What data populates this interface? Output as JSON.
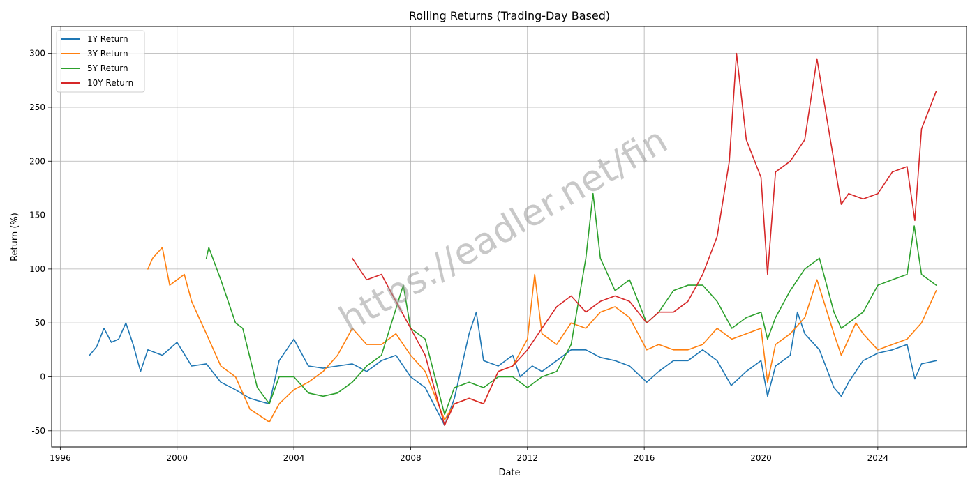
{
  "chart_data": {
    "type": "line",
    "title": "Rolling Returns (Trading-Day Based)",
    "xlabel": "Date",
    "ylabel": "Return (%)",
    "xlim": [
      "1995-09-15",
      "2027-01-15"
    ],
    "ylim": [
      -65,
      325
    ],
    "x_ticks": [
      {
        "value": "1996-01-01",
        "label": "1996"
      },
      {
        "value": "2000-01-01",
        "label": "2000"
      },
      {
        "value": "2004-01-01",
        "label": "2004"
      },
      {
        "value": "2008-01-01",
        "label": "2008"
      },
      {
        "value": "2012-01-01",
        "label": "2012"
      },
      {
        "value": "2016-01-01",
        "label": "2016"
      },
      {
        "value": "2020-01-01",
        "label": "2020"
      },
      {
        "value": "2024-01-01",
        "label": "2024"
      }
    ],
    "y_ticks": [
      -50,
      0,
      50,
      100,
      150,
      200,
      250,
      300
    ],
    "grid": true,
    "legend_position": "top-left",
    "watermark": "https://eadler.net/fin",
    "series": [
      {
        "name": "1Y Return",
        "color": "#1f77b4",
        "points": [
          [
            "1997-01-01",
            20
          ],
          [
            "1997-04-01",
            28
          ],
          [
            "1997-07-01",
            45
          ],
          [
            "1997-10-01",
            32
          ],
          [
            "1998-01-01",
            35
          ],
          [
            "1998-04-01",
            50
          ],
          [
            "1998-07-01",
            30
          ],
          [
            "1998-10-01",
            5
          ],
          [
            "1999-01-01",
            25
          ],
          [
            "1999-07-01",
            20
          ],
          [
            "2000-01-01",
            32
          ],
          [
            "2000-07-01",
            10
          ],
          [
            "2001-01-01",
            12
          ],
          [
            "2001-07-01",
            -5
          ],
          [
            "2002-01-01",
            -12
          ],
          [
            "2002-07-01",
            -20
          ],
          [
            "2002-10-01",
            -22
          ],
          [
            "2003-03-01",
            -25
          ],
          [
            "2003-07-01",
            15
          ],
          [
            "2004-01-01",
            35
          ],
          [
            "2004-07-01",
            10
          ],
          [
            "2005-01-01",
            8
          ],
          [
            "2005-07-01",
            10
          ],
          [
            "2006-01-01",
            12
          ],
          [
            "2006-07-01",
            5
          ],
          [
            "2007-01-01",
            15
          ],
          [
            "2007-07-01",
            20
          ],
          [
            "2008-01-01",
            0
          ],
          [
            "2008-07-01",
            -10
          ],
          [
            "2009-03-01",
            -45
          ],
          [
            "2009-07-01",
            -20
          ],
          [
            "2010-01-01",
            40
          ],
          [
            "2010-04-01",
            60
          ],
          [
            "2010-07-01",
            15
          ],
          [
            "2011-01-01",
            10
          ],
          [
            "2011-07-01",
            20
          ],
          [
            "2011-10-01",
            0
          ],
          [
            "2012-03-01",
            10
          ],
          [
            "2012-07-01",
            5
          ],
          [
            "2013-01-01",
            15
          ],
          [
            "2013-07-01",
            25
          ],
          [
            "2014-01-01",
            25
          ],
          [
            "2014-07-01",
            18
          ],
          [
            "2015-01-01",
            15
          ],
          [
            "2015-07-01",
            10
          ],
          [
            "2016-02-01",
            -5
          ],
          [
            "2016-07-01",
            5
          ],
          [
            "2017-01-01",
            15
          ],
          [
            "2017-07-01",
            15
          ],
          [
            "2018-01-01",
            25
          ],
          [
            "2018-07-01",
            15
          ],
          [
            "2018-12-24",
            -8
          ],
          [
            "2019-07-01",
            5
          ],
          [
            "2020-01-01",
            15
          ],
          [
            "2020-03-23",
            -18
          ],
          [
            "2020-07-01",
            10
          ],
          [
            "2021-01-01",
            20
          ],
          [
            "2021-04-01",
            60
          ],
          [
            "2021-07-01",
            40
          ],
          [
            "2022-01-01",
            25
          ],
          [
            "2022-07-01",
            -10
          ],
          [
            "2022-10-01",
            -18
          ],
          [
            "2023-01-01",
            -5
          ],
          [
            "2023-07-01",
            15
          ],
          [
            "2024-01-01",
            22
          ],
          [
            "2024-07-01",
            25
          ],
          [
            "2025-01-01",
            30
          ],
          [
            "2025-04-08",
            -2
          ],
          [
            "2025-07-01",
            12
          ],
          [
            "2026-01-01",
            15
          ]
        ]
      },
      {
        "name": "3Y Return",
        "color": "#ff7f0e",
        "points": [
          [
            "1999-01-01",
            100
          ],
          [
            "1999-03-01",
            110
          ],
          [
            "1999-07-01",
            120
          ],
          [
            "1999-10-01",
            85
          ],
          [
            "2000-01-01",
            90
          ],
          [
            "2000-04-01",
            95
          ],
          [
            "2000-07-01",
            70
          ],
          [
            "2000-10-01",
            55
          ],
          [
            "2001-01-01",
            40
          ],
          [
            "2001-07-01",
            10
          ],
          [
            "2002-01-01",
            0
          ],
          [
            "2002-07-01",
            -30
          ],
          [
            "2003-03-01",
            -42
          ],
          [
            "2003-07-01",
            -25
          ],
          [
            "2004-01-01",
            -12
          ],
          [
            "2004-07-01",
            -5
          ],
          [
            "2005-01-01",
            5
          ],
          [
            "2005-07-01",
            20
          ],
          [
            "2006-01-01",
            45
          ],
          [
            "2006-07-01",
            30
          ],
          [
            "2007-01-01",
            30
          ],
          [
            "2007-07-01",
            40
          ],
          [
            "2008-01-01",
            20
          ],
          [
            "2008-07-01",
            5
          ],
          [
            "2009-03-01",
            -40
          ],
          [
            "2009-07-01",
            -25
          ],
          [
            "2010-01-01",
            -20
          ],
          [
            "2010-07-01",
            -25
          ],
          [
            "2011-01-01",
            5
          ],
          [
            "2011-07-01",
            10
          ],
          [
            "2012-01-01",
            35
          ],
          [
            "2012-04-01",
            95
          ],
          [
            "2012-07-01",
            40
          ],
          [
            "2013-01-01",
            30
          ],
          [
            "2013-07-01",
            50
          ],
          [
            "2014-01-01",
            45
          ],
          [
            "2014-07-01",
            60
          ],
          [
            "2015-01-01",
            65
          ],
          [
            "2015-07-01",
            55
          ],
          [
            "2016-02-01",
            25
          ],
          [
            "2016-07-01",
            30
          ],
          [
            "2017-01-01",
            25
          ],
          [
            "2017-07-01",
            25
          ],
          [
            "2018-01-01",
            30
          ],
          [
            "2018-07-01",
            45
          ],
          [
            "2019-01-01",
            35
          ],
          [
            "2019-07-01",
            40
          ],
          [
            "2020-01-01",
            45
          ],
          [
            "2020-03-23",
            -5
          ],
          [
            "2020-07-01",
            30
          ],
          [
            "2021-01-01",
            40
          ],
          [
            "2021-07-01",
            55
          ],
          [
            "2021-12-01",
            90
          ],
          [
            "2022-07-01",
            40
          ],
          [
            "2022-10-01",
            20
          ],
          [
            "2023-04-01",
            50
          ],
          [
            "2023-07-01",
            40
          ],
          [
            "2024-01-01",
            25
          ],
          [
            "2024-07-01",
            30
          ],
          [
            "2025-01-01",
            35
          ],
          [
            "2025-07-01",
            50
          ],
          [
            "2026-01-01",
            80
          ]
        ]
      },
      {
        "name": "5Y Return",
        "color": "#2ca02c",
        "points": [
          [
            "2001-01-01",
            110
          ],
          [
            "2001-02-01",
            120
          ],
          [
            "2001-07-01",
            90
          ],
          [
            "2002-01-01",
            50
          ],
          [
            "2002-04-01",
            45
          ],
          [
            "2002-10-01",
            -10
          ],
          [
            "2003-03-01",
            -25
          ],
          [
            "2003-07-01",
            0
          ],
          [
            "2004-01-01",
            0
          ],
          [
            "2004-07-01",
            -15
          ],
          [
            "2005-01-01",
            -18
          ],
          [
            "2005-07-01",
            -15
          ],
          [
            "2006-01-01",
            -5
          ],
          [
            "2006-07-01",
            10
          ],
          [
            "2007-01-01",
            20
          ],
          [
            "2007-10-01",
            85
          ],
          [
            "2008-01-01",
            45
          ],
          [
            "2008-07-01",
            35
          ],
          [
            "2009-03-01",
            -35
          ],
          [
            "2009-07-01",
            -10
          ],
          [
            "2010-01-01",
            -5
          ],
          [
            "2010-07-01",
            -10
          ],
          [
            "2011-01-01",
            0
          ],
          [
            "2011-07-01",
            0
          ],
          [
            "2012-01-01",
            -10
          ],
          [
            "2012-07-01",
            0
          ],
          [
            "2013-01-01",
            5
          ],
          [
            "2013-07-01",
            30
          ],
          [
            "2014-01-01",
            110
          ],
          [
            "2014-04-01",
            170
          ],
          [
            "2014-07-01",
            110
          ],
          [
            "2015-01-01",
            80
          ],
          [
            "2015-07-01",
            90
          ],
          [
            "2016-02-01",
            50
          ],
          [
            "2016-07-01",
            60
          ],
          [
            "2017-01-01",
            80
          ],
          [
            "2017-07-01",
            85
          ],
          [
            "2018-01-01",
            85
          ],
          [
            "2018-07-01",
            70
          ],
          [
            "2019-01-01",
            45
          ],
          [
            "2019-07-01",
            55
          ],
          [
            "2020-01-01",
            60
          ],
          [
            "2020-03-23",
            35
          ],
          [
            "2020-07-01",
            55
          ],
          [
            "2021-01-01",
            80
          ],
          [
            "2021-07-01",
            100
          ],
          [
            "2022-01-01",
            110
          ],
          [
            "2022-07-01",
            60
          ],
          [
            "2022-10-01",
            45
          ],
          [
            "2023-07-01",
            60
          ],
          [
            "2024-01-01",
            85
          ],
          [
            "2024-07-01",
            90
          ],
          [
            "2025-01-01",
            95
          ],
          [
            "2025-04-01",
            140
          ],
          [
            "2025-07-01",
            95
          ],
          [
            "2026-01-01",
            85
          ]
        ]
      },
      {
        "name": "10Y Return",
        "color": "#d62728",
        "points": [
          [
            "2006-01-01",
            110
          ],
          [
            "2006-04-01",
            100
          ],
          [
            "2006-07-01",
            90
          ],
          [
            "2007-01-01",
            95
          ],
          [
            "2007-07-01",
            70
          ],
          [
            "2008-01-01",
            45
          ],
          [
            "2008-07-01",
            20
          ],
          [
            "2009-03-01",
            -45
          ],
          [
            "2009-07-01",
            -25
          ],
          [
            "2010-01-01",
            -20
          ],
          [
            "2010-07-01",
            -25
          ],
          [
            "2011-01-01",
            5
          ],
          [
            "2011-07-01",
            10
          ],
          [
            "2012-01-01",
            25
          ],
          [
            "2012-07-01",
            45
          ],
          [
            "2013-01-01",
            65
          ],
          [
            "2013-07-01",
            75
          ],
          [
            "2014-01-01",
            60
          ],
          [
            "2014-07-01",
            70
          ],
          [
            "2015-01-01",
            75
          ],
          [
            "2015-07-01",
            70
          ],
          [
            "2016-02-01",
            50
          ],
          [
            "2016-07-01",
            60
          ],
          [
            "2017-01-01",
            60
          ],
          [
            "2017-07-01",
            70
          ],
          [
            "2018-01-01",
            95
          ],
          [
            "2018-07-01",
            130
          ],
          [
            "2018-12-01",
            200
          ],
          [
            "2019-03-01",
            300
          ],
          [
            "2019-07-01",
            220
          ],
          [
            "2020-01-01",
            185
          ],
          [
            "2020-03-23",
            95
          ],
          [
            "2020-07-01",
            190
          ],
          [
            "2021-01-01",
            200
          ],
          [
            "2021-07-01",
            220
          ],
          [
            "2021-12-01",
            295
          ],
          [
            "2022-07-01",
            200
          ],
          [
            "2022-10-01",
            160
          ],
          [
            "2023-01-01",
            170
          ],
          [
            "2023-07-01",
            165
          ],
          [
            "2024-01-01",
            170
          ],
          [
            "2024-07-01",
            190
          ],
          [
            "2025-01-01",
            195
          ],
          [
            "2025-04-08",
            145
          ],
          [
            "2025-07-01",
            230
          ],
          [
            "2026-01-01",
            265
          ]
        ]
      }
    ]
  }
}
